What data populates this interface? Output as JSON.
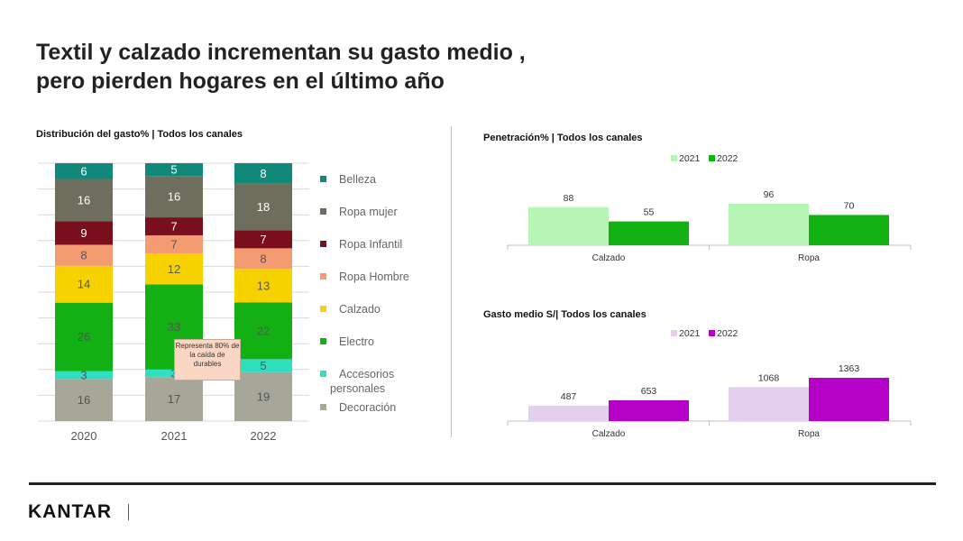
{
  "title": {
    "line1": "Textil y calzado incrementan su gasto medio ,",
    "line2": "pero pierden hogares en el último año"
  },
  "logo": "KANTAR",
  "chart_data": [
    {
      "type": "bar",
      "stacked": true,
      "title": "Distribución del gasto% | Todos los canales",
      "categories": [
        "2020",
        "2021",
        "2022"
      ],
      "ylim": [
        0,
        100
      ],
      "series": [
        {
          "name": "Decoración",
          "color": "#a6a699",
          "values": [
            16,
            17,
            19
          ],
          "labels": [
            "16",
            "17",
            "19"
          ]
        },
        {
          "name": "Accesorios personales",
          "color": "#2ee0c0",
          "values": [
            3,
            3,
            5
          ],
          "labels": [
            "3",
            "3",
            "5"
          ]
        },
        {
          "name": "Electro",
          "color": "#12b012",
          "values": [
            26,
            33,
            22
          ],
          "labels": [
            "26",
            "33",
            "22"
          ]
        },
        {
          "name": "Calzado",
          "color": "#f5d200",
          "values": [
            14,
            12,
            13
          ],
          "labels": [
            "14",
            "12",
            "13"
          ]
        },
        {
          "name": "Ropa Hombre",
          "color": "#f59b72",
          "values": [
            8,
            7,
            8
          ],
          "labels": [
            "8",
            "7",
            "8"
          ]
        },
        {
          "name": "Ropa Infantil",
          "color": "#7a0f1e",
          "values": [
            9,
            7,
            7
          ],
          "labels": [
            "9",
            "7",
            "7"
          ]
        },
        {
          "name": "Ropa mujer",
          "color": "#6e6e5f",
          "values": [
            16,
            16,
            18
          ],
          "labels": [
            "16",
            "16",
            "18"
          ]
        },
        {
          "name": "Belleza",
          "color": "#10897a",
          "values": [
            6,
            5,
            8
          ],
          "labels": [
            "6",
            "5",
            "8"
          ]
        }
      ],
      "legend": [
        "Belleza",
        "Ropa mujer",
        "Ropa Infantil",
        "Ropa Hombre",
        "Calzado",
        "Electro",
        "Accesorios personales",
        "Decoración"
      ],
      "legend_position": "right",
      "grid": true,
      "annotation": "Representa 80% de la caída de durables"
    },
    {
      "type": "bar",
      "title": "Penetración%  | Todos los canales",
      "categories": [
        "Calzado",
        "Ropa"
      ],
      "series": [
        {
          "name": "2021",
          "color": "#b7f5b7",
          "values": [
            88,
            96
          ]
        },
        {
          "name": "2022",
          "color": "#12b012",
          "values": [
            55,
            70
          ]
        }
      ],
      "ylim": [
        0,
        100
      ],
      "legend_position": "top"
    },
    {
      "type": "bar",
      "title": "Gasto medio S/| Todos los canales",
      "categories": [
        "Calzado",
        "Ropa"
      ],
      "series": [
        {
          "name": "2021",
          "color": "#e3d0ef",
          "values": [
            487,
            1068
          ]
        },
        {
          "name": "2022",
          "color": "#b500c8",
          "values": [
            653,
            1363
          ]
        }
      ],
      "ylim": [
        0,
        1363
      ],
      "legend_position": "top"
    }
  ]
}
